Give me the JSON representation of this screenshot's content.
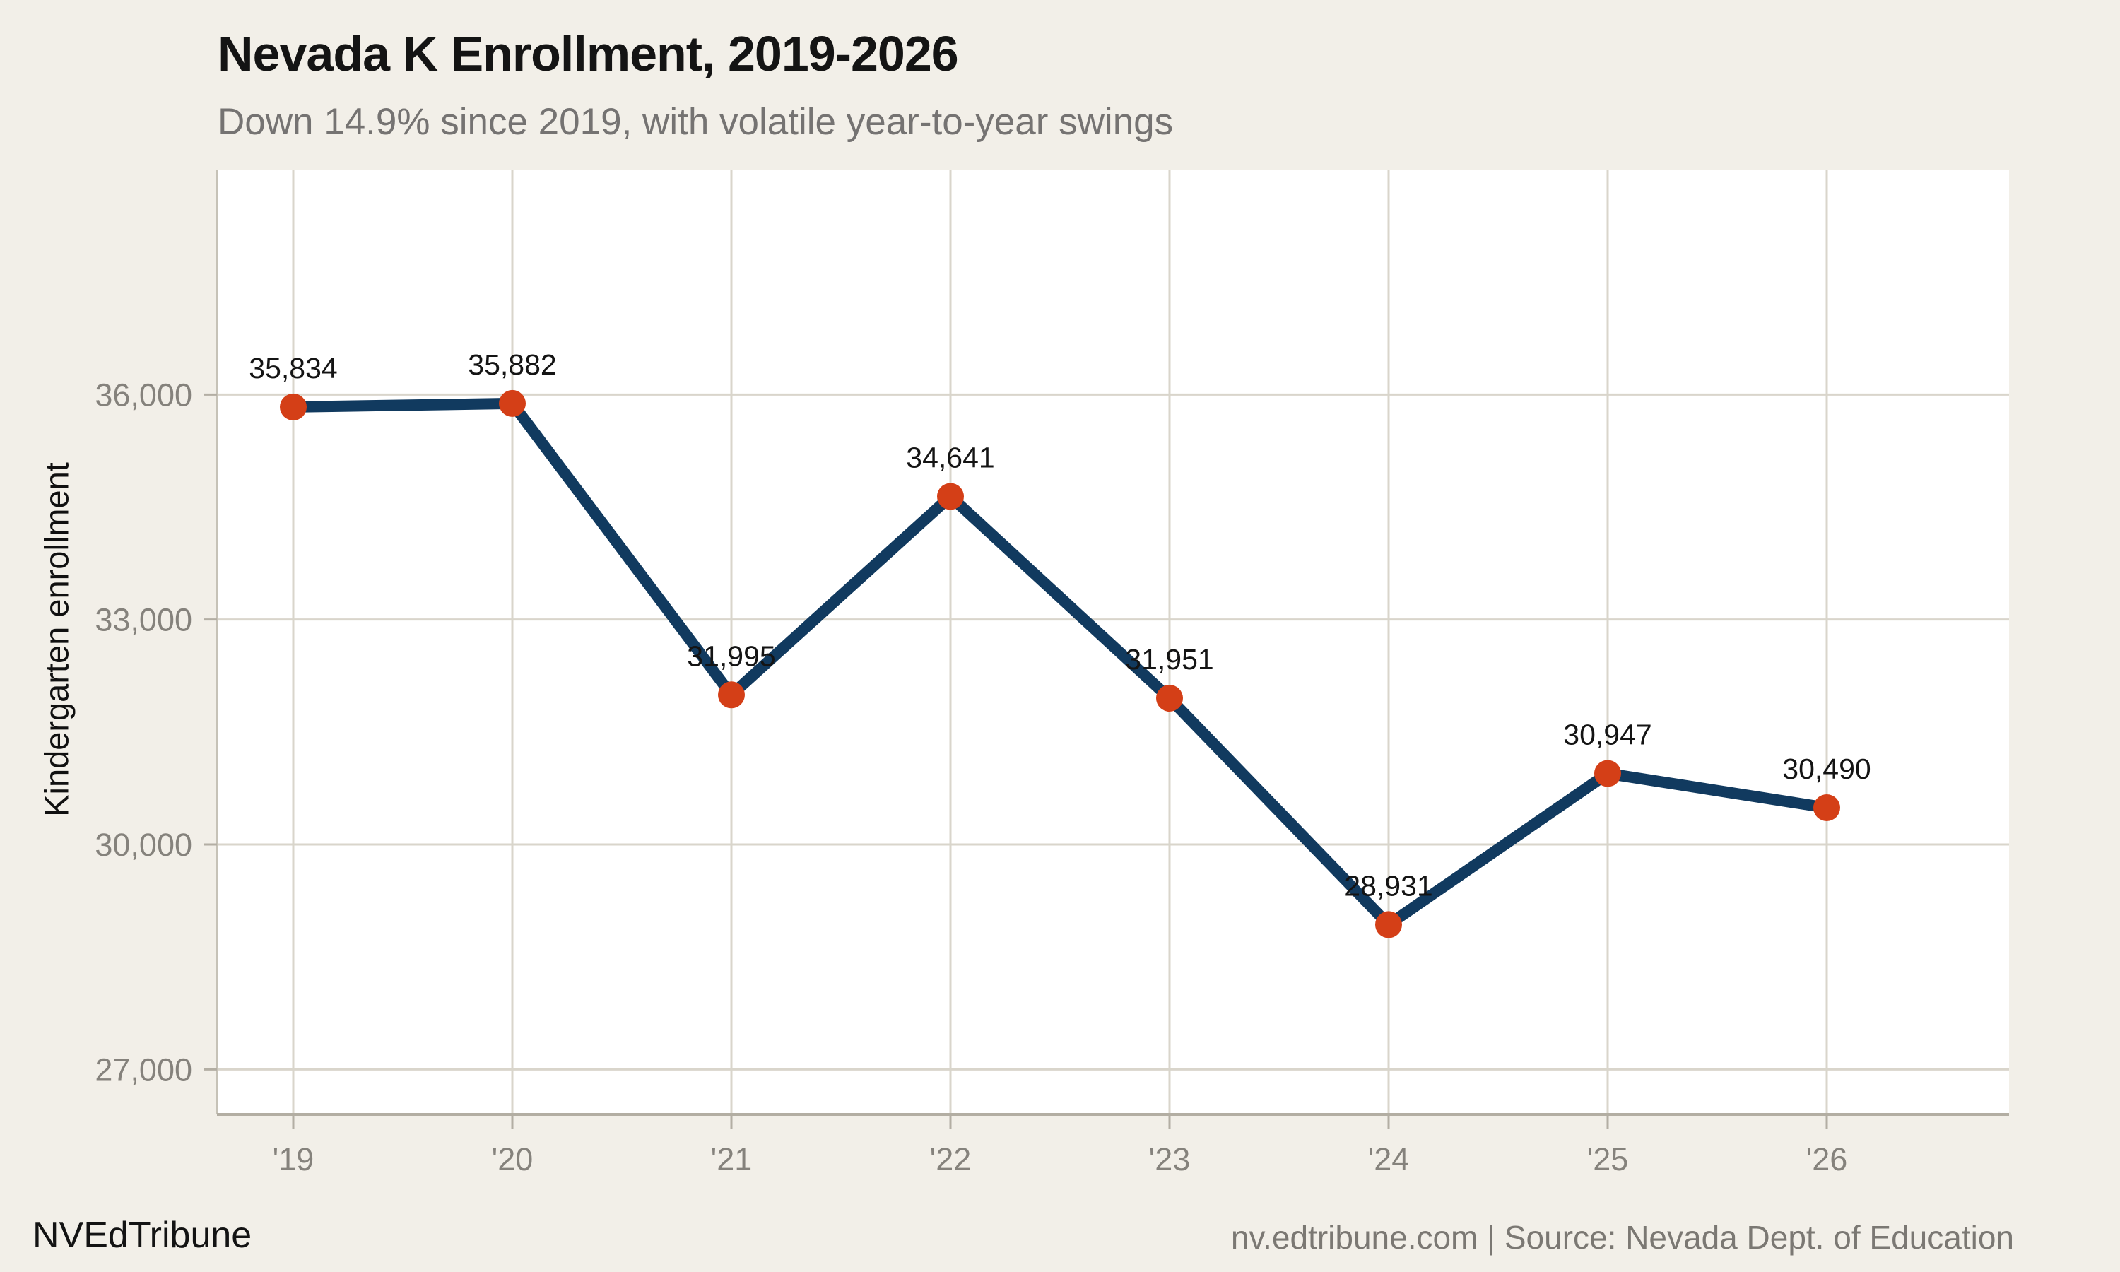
{
  "header": {
    "title": "Nevada K Enrollment, 2019-2026",
    "subtitle": "Down 14.9% since 2019, with volatile year-to-year swings"
  },
  "chart_data": {
    "type": "line",
    "title": "Nevada K Enrollment, 2019-2026",
    "subtitle": "Down 14.9% since 2019, with volatile year-to-year swings",
    "categories": [
      "'19",
      "'20",
      "'21",
      "'22",
      "'23",
      "'24",
      "'25",
      "'26"
    ],
    "values": [
      35834,
      35882,
      31995,
      34641,
      31951,
      28931,
      30947,
      30490
    ],
    "point_labels": [
      "35,834",
      "35,882",
      "31,995",
      "34,641",
      "31,951",
      "28,931",
      "30,947",
      "30,490"
    ],
    "series_name": "Kindergarten enrollment",
    "xlabel": "",
    "ylabel": "Kindergarten enrollment",
    "yticks": {
      "values": [
        27000,
        30000,
        33000,
        36000
      ],
      "labels": [
        "27,000",
        "30,000",
        "33,000",
        "36,000"
      ]
    },
    "ylim": [
      26400,
      39000
    ],
    "grid": true,
    "legend_position": "none",
    "line_color": "#113a5f",
    "point_color": "#d43f17",
    "plot_background": "#ffffff",
    "page_background": "#f2efe8",
    "gridline_color": "#d9d5cb",
    "axis_color": "#b3aea3"
  },
  "footer": {
    "brand": "NVEdTribune",
    "source": "nv.edtribune.com | Source: Nevada Dept. of Education"
  }
}
